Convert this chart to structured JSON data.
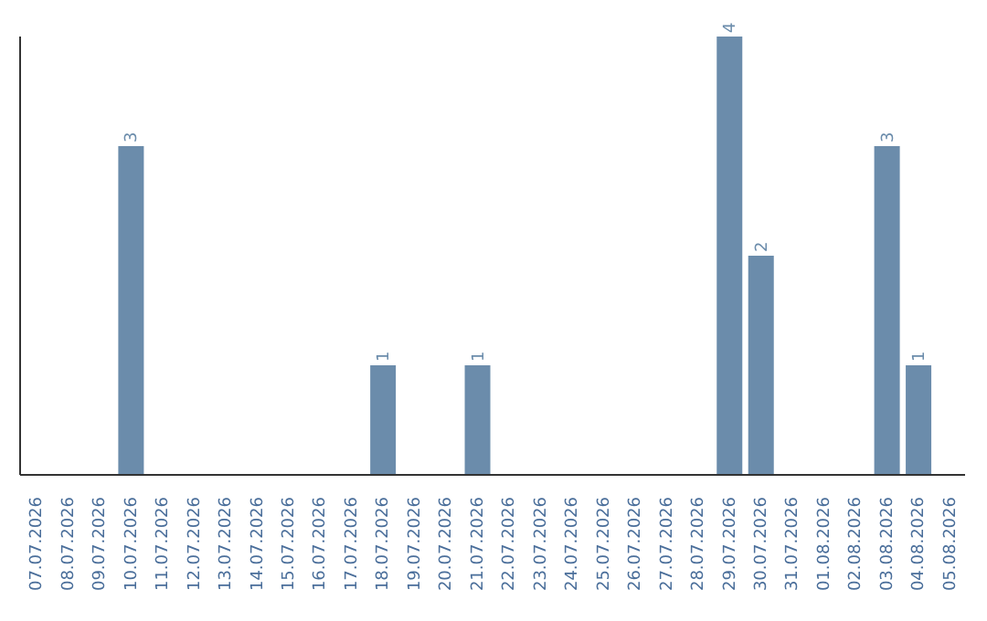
{
  "chart_data": {
    "type": "bar",
    "categories": [
      "07.07.2026",
      "08.07.2026",
      "09.07.2026",
      "10.07.2026",
      "11.07.2026",
      "12.07.2026",
      "13.07.2026",
      "14.07.2026",
      "15.07.2026",
      "16.07.2026",
      "17.07.2026",
      "18.07.2026",
      "19.07.2026",
      "20.07.2026",
      "21.07.2026",
      "22.07.2026",
      "23.07.2026",
      "24.07.2026",
      "25.07.2026",
      "26.07.2026",
      "27.07.2026",
      "28.07.2026",
      "29.07.2026",
      "30.07.2026",
      "31.07.2026",
      "01.08.2026",
      "02.08.2026",
      "03.08.2026",
      "04.08.2026",
      "05.08.2026"
    ],
    "values": [
      0,
      0,
      0,
      3,
      0,
      0,
      0,
      0,
      0,
      0,
      0,
      1,
      0,
      0,
      1,
      0,
      0,
      0,
      0,
      0,
      0,
      0,
      4,
      2,
      0,
      0,
      0,
      3,
      1,
      0
    ],
    "value_labels": [
      null,
      null,
      null,
      "3",
      null,
      null,
      null,
      null,
      null,
      null,
      null,
      "1",
      null,
      null,
      "1",
      null,
      null,
      null,
      null,
      null,
      null,
      null,
      "4",
      "2",
      null,
      null,
      null,
      "3",
      "1",
      null
    ],
    "color": "#6b8cab",
    "tick_labels": "x",
    "grid": false,
    "legend": false
  }
}
